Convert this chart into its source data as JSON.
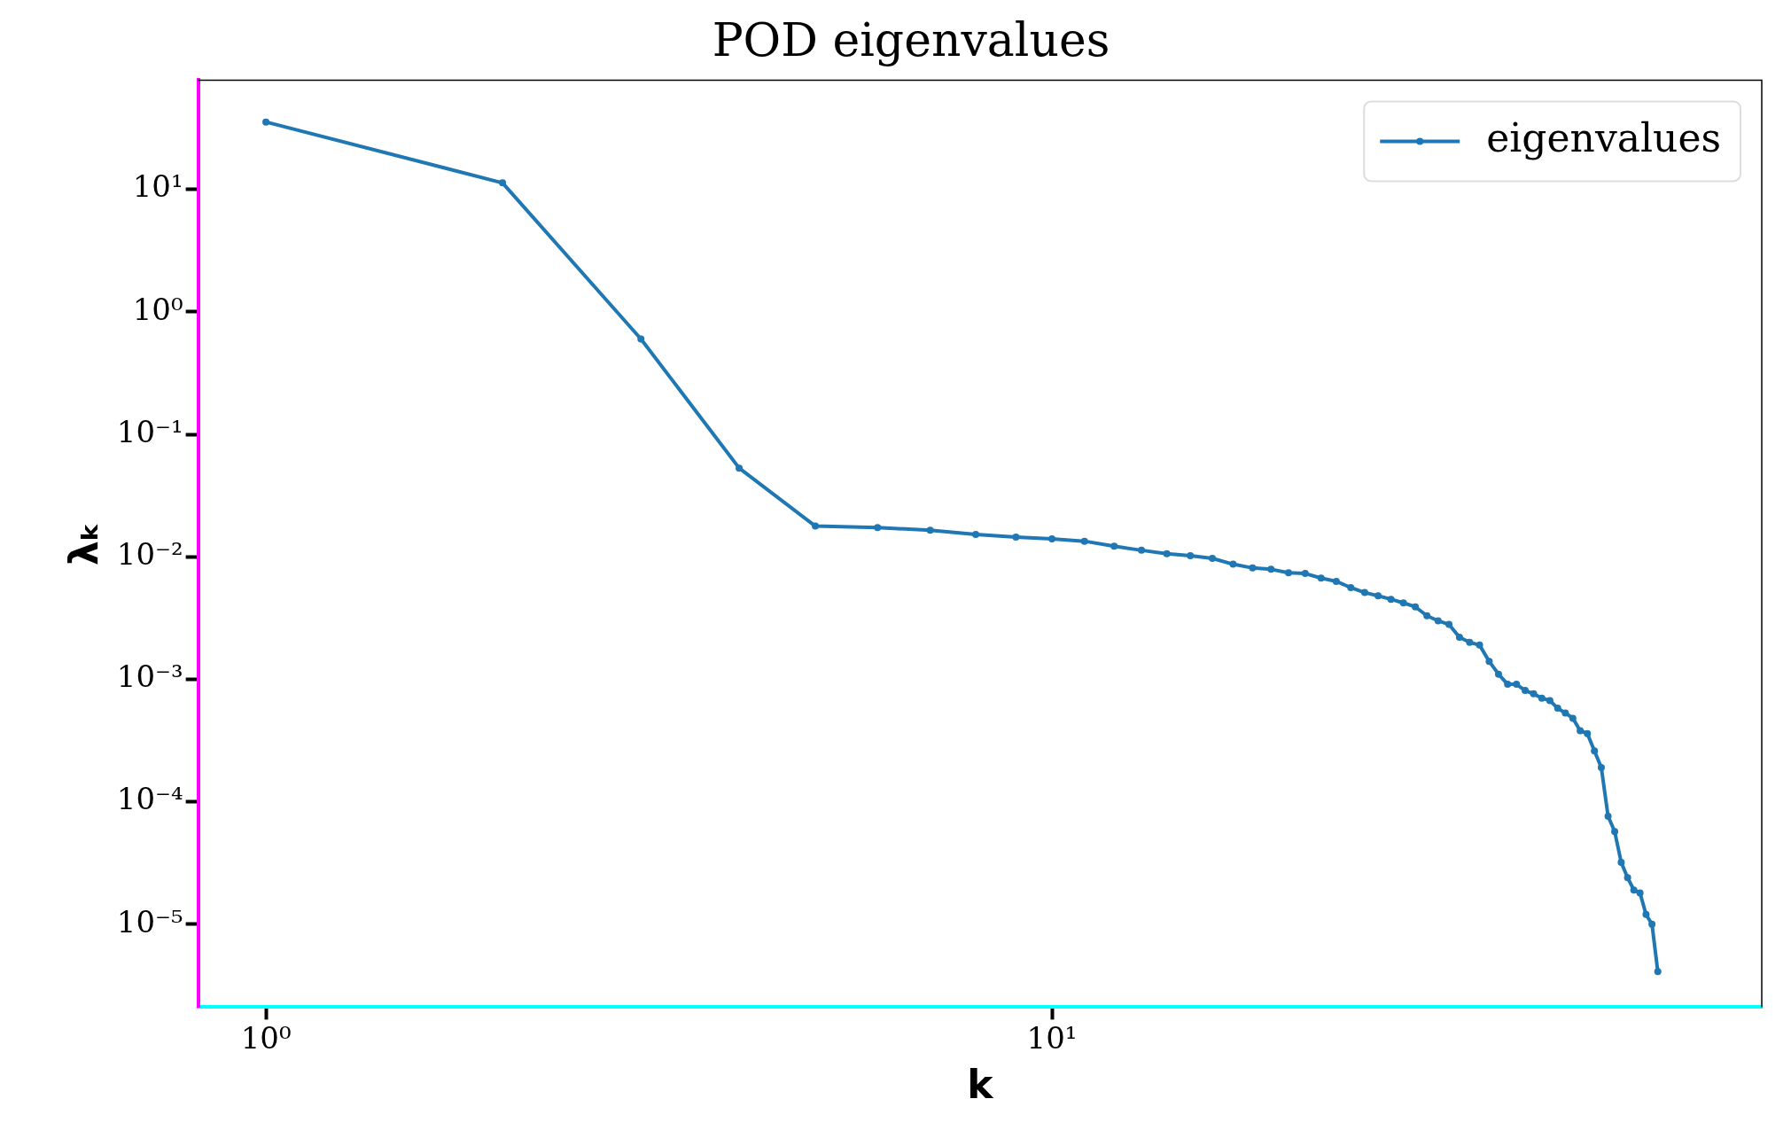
{
  "chart_data": {
    "type": "line",
    "title": "POD eigenvalues",
    "xlabel": "k",
    "ylabel": "λₖ",
    "x": [
      1,
      2,
      3,
      4,
      5,
      6,
      7,
      8,
      9,
      10,
      11,
      12,
      13,
      14,
      15,
      16,
      17,
      18,
      19,
      20,
      21,
      22,
      23,
      24,
      25,
      26,
      27,
      28,
      29,
      30,
      31,
      32,
      33,
      34,
      35,
      36,
      37,
      38,
      39,
      40,
      41,
      42,
      43,
      44,
      45,
      46,
      47,
      48,
      49,
      50,
      51,
      52,
      53,
      54,
      55,
      56,
      57,
      58,
      59
    ],
    "series": [
      {
        "name": "eigenvalues",
        "color": "#1f77b4",
        "values": [
          35.5,
          11.3,
          0.6,
          0.053,
          0.0178,
          0.0173,
          0.0165,
          0.0152,
          0.0145,
          0.014,
          0.0134,
          0.0122,
          0.0113,
          0.0106,
          0.0102,
          0.0097,
          0.0087,
          0.0081,
          0.0079,
          0.0074,
          0.0073,
          0.0067,
          0.0063,
          0.0056,
          0.0051,
          0.0048,
          0.0045,
          0.0042,
          0.0039,
          0.0033,
          0.003,
          0.0028,
          0.0022,
          0.002,
          0.0019,
          0.0014,
          0.0011,
          0.00091,
          0.00091,
          0.00081,
          0.00076,
          0.0007,
          0.00067,
          0.00058,
          0.00053,
          0.00048,
          0.00038,
          0.00036,
          0.00026,
          0.00019,
          7.6e-05,
          5.7e-05,
          3.2e-05,
          2.4e-05,
          1.9e-05,
          1.8e-05,
          1.2e-05,
          1e-05,
          4.1e-06
        ]
      }
    ],
    "log": "xy",
    "xlim": [
      0.82,
      80
    ],
    "ylim": [
      2.1e-06,
      78
    ],
    "xticks": [
      {
        "value": 1,
        "label": "10⁰"
      },
      {
        "value": 10,
        "label": "10¹"
      }
    ],
    "yticks": [
      {
        "value": 1e-05,
        "label": "10⁻⁵"
      },
      {
        "value": 0.0001,
        "label": "10⁻⁴"
      },
      {
        "value": 0.001,
        "label": "10⁻³"
      },
      {
        "value": 0.01,
        "label": "10⁻²"
      },
      {
        "value": 0.1,
        "label": "10⁻¹"
      },
      {
        "value": 1,
        "label": "10⁰"
      },
      {
        "value": 10,
        "label": "10¹"
      }
    ],
    "legend": "top right",
    "marker": "circle",
    "line_style": "solid",
    "grid": false
  }
}
